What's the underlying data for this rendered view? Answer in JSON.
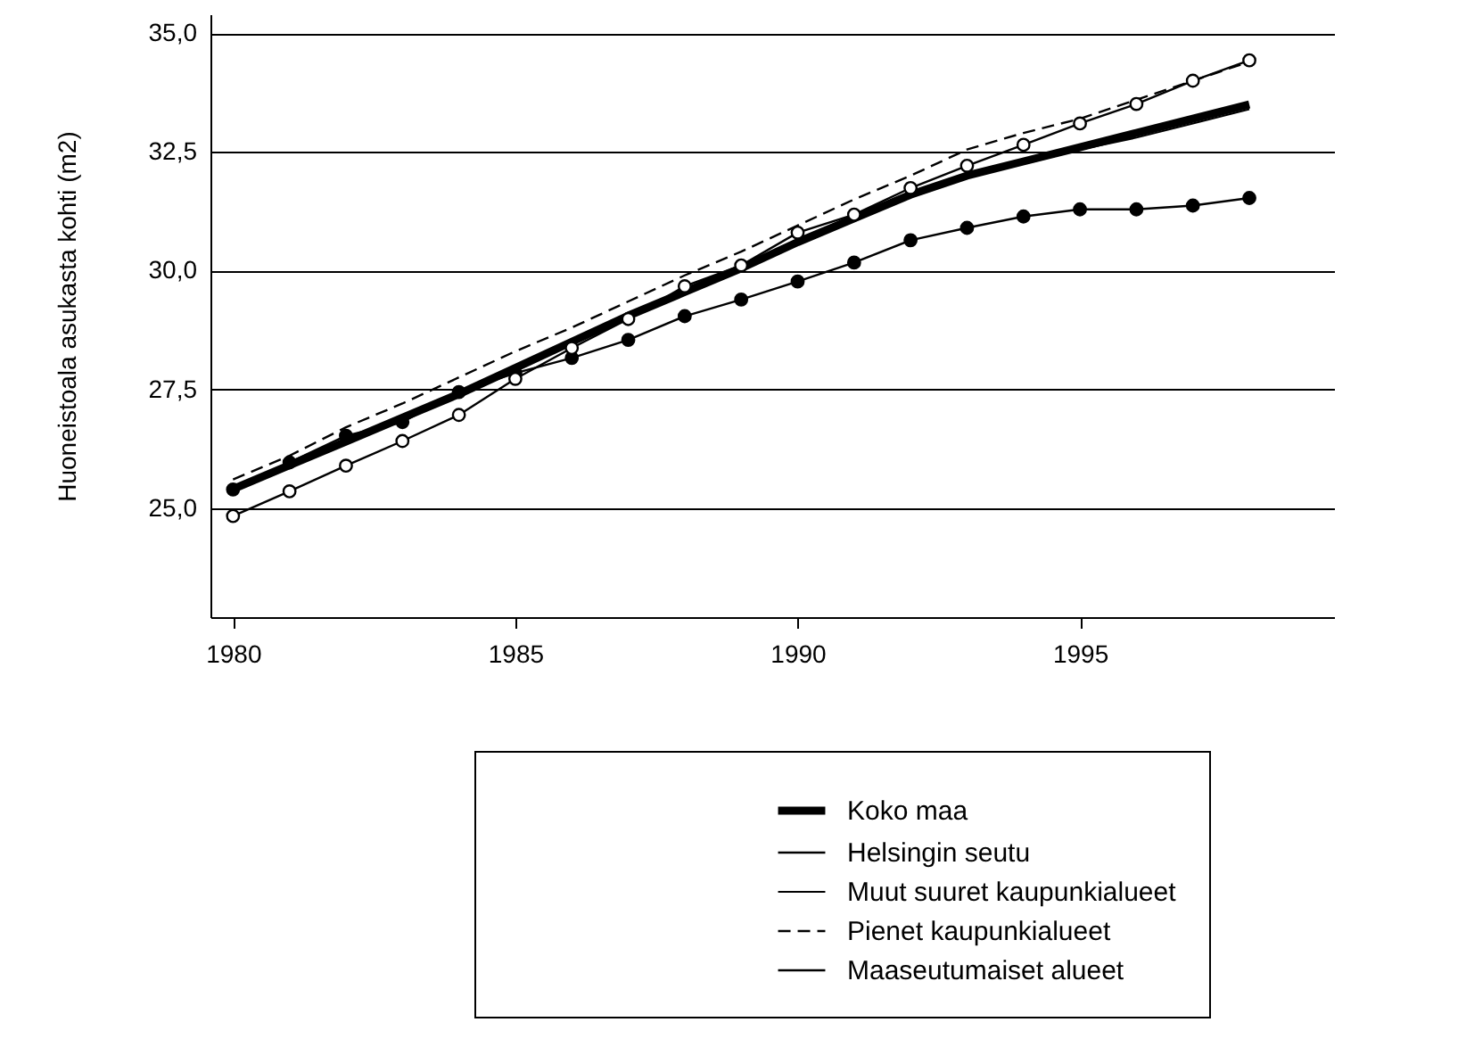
{
  "chart_data": {
    "type": "line",
    "ylabel": "Huoneistoala asukasta kohti (m2)",
    "x": [
      1980,
      1981,
      1982,
      1983,
      1984,
      1985,
      1986,
      1987,
      1988,
      1989,
      1990,
      1991,
      1992,
      1993,
      1994,
      1995,
      1996,
      1997,
      1998
    ],
    "series": [
      {
        "name": "Koko maa",
        "color": "#000000",
        "line_style": "solid",
        "marker": "none",
        "values": [
          25.4,
          25.9,
          26.4,
          26.9,
          27.4,
          27.95,
          28.5,
          29.05,
          29.55,
          30.05,
          30.6,
          31.1,
          31.6,
          32.0,
          32.3,
          32.6,
          32.9,
          33.2,
          33.5
        ]
      },
      {
        "name": "Helsingin seutu",
        "color": "#000000",
        "line_style": "solid",
        "marker": "circle",
        "values": [
          25.39,
          25.96,
          26.52,
          26.81,
          27.44,
          27.84,
          28.16,
          28.54,
          29.04,
          29.39,
          29.77,
          30.17,
          30.64,
          30.9,
          31.14,
          31.29,
          31.29,
          31.37,
          31.53
        ]
      },
      {
        "name": "Muut suuret kaupunkialueet",
        "color": "#000000",
        "line_style": "solid",
        "marker": "none",
        "values": [
          25.4,
          25.9,
          26.4,
          26.9,
          27.4,
          27.95,
          28.5,
          29.05,
          29.55,
          30.05,
          30.6,
          31.1,
          31.6,
          32.0,
          32.25,
          32.55,
          32.8,
          33.1,
          33.4
        ]
      },
      {
        "name": "Pienet kaupunkialueet",
        "color": "#000000",
        "line_style": "dashed",
        "marker": "none",
        "values": [
          25.6,
          26.1,
          26.7,
          27.2,
          27.75,
          28.3,
          28.8,
          29.35,
          29.9,
          30.4,
          30.95,
          31.5,
          32.0,
          32.55,
          32.9,
          33.2,
          33.6,
          34.0,
          34.4
        ]
      },
      {
        "name": "Maaseutumaiset alueet",
        "color": "#000000",
        "line_style": "solid",
        "marker": "circle",
        "values": [
          24.83,
          25.35,
          25.89,
          26.41,
          26.96,
          27.72,
          28.37,
          28.98,
          29.67,
          30.11,
          30.8,
          31.18,
          31.74,
          32.21,
          32.65,
          33.1,
          33.51,
          34.0,
          34.43
        ]
      }
    ],
    "xlim": [
      1979.6,
      1999.5
    ],
    "xticks": [
      1980,
      1985,
      1990,
      1995
    ],
    "ylim": [
      22.7,
      35.4
    ],
    "yticks": [
      {
        "value": 25,
        "label": "25,0"
      },
      {
        "value": 27.5,
        "label": "27,5"
      },
      {
        "value": 30,
        "label": "30,0"
      },
      {
        "value": 32.5,
        "label": "32,5"
      },
      {
        "value": 35,
        "label": "35,0"
      }
    ],
    "grid": "y",
    "legend": "bottom"
  }
}
